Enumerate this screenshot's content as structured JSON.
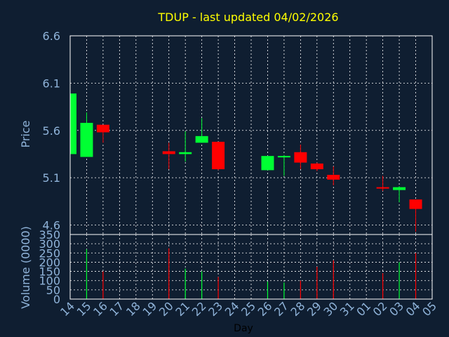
{
  "title": "TDUP - last updated 04/02/2026",
  "colors": {
    "background": "#0f1e31",
    "title": "#ffff00",
    "axis_text": "#8fb3d9",
    "xlabel_text": "#000000",
    "up": "#00ff33",
    "down": "#ff0000",
    "grid": "#ffffff"
  },
  "chart_data": [
    {
      "type": "candlestick",
      "ylabel": "Price",
      "ylim": [
        4.5,
        6.6
      ],
      "yticks": [
        "6.6",
        "6.1",
        "5.6",
        "5.1",
        "4.6"
      ],
      "grid": true,
      "candles": [
        {
          "x": "14",
          "open": 5.35,
          "high": 5.99,
          "low": 5.35,
          "close": 5.99
        },
        {
          "x": "15",
          "open": 5.32,
          "high": 5.79,
          "low": 5.32,
          "close": 5.68
        },
        {
          "x": "16",
          "open": 5.66,
          "high": 5.66,
          "low": 5.47,
          "close": 5.58
        },
        {
          "x": "20",
          "open": 5.38,
          "high": 5.47,
          "low": 5.19,
          "close": 5.35
        },
        {
          "x": "21",
          "open": 5.35,
          "high": 5.59,
          "low": 5.27,
          "close": 5.37
        },
        {
          "x": "22",
          "open": 5.47,
          "high": 5.73,
          "low": 5.47,
          "close": 5.54
        },
        {
          "x": "23",
          "open": 5.48,
          "high": 5.48,
          "low": 5.18,
          "close": 5.19
        },
        {
          "x": "26",
          "open": 5.18,
          "high": 5.33,
          "low": 5.18,
          "close": 5.33
        },
        {
          "x": "27",
          "open": 5.32,
          "high": 5.34,
          "low": 5.12,
          "close": 5.33
        },
        {
          "x": "28",
          "open": 5.37,
          "high": 5.45,
          "low": 5.19,
          "close": 5.26
        },
        {
          "x": "29",
          "open": 5.25,
          "high": 5.26,
          "low": 5.17,
          "close": 5.19
        },
        {
          "x": "30",
          "open": 5.13,
          "high": 5.22,
          "low": 5.02,
          "close": 5.08
        },
        {
          "x": "02",
          "open": 5.0,
          "high": 5.12,
          "low": 4.96,
          "close": 4.99
        },
        {
          "x": "03",
          "open": 4.97,
          "high": 5.01,
          "low": 4.84,
          "close": 5.0
        },
        {
          "x": "04",
          "open": 4.87,
          "high": 4.87,
          "low": 4.53,
          "close": 4.77
        }
      ]
    },
    {
      "type": "bar",
      "ylabel": "Volume (0000)",
      "xlabel": "Day",
      "ylim": [
        0,
        350
      ],
      "yticks": [
        "350",
        "300",
        "250",
        "200",
        "150",
        "100",
        "50",
        "0"
      ],
      "grid": true,
      "categories": [
        "14",
        "15",
        "16",
        "17",
        "18",
        "19",
        "20",
        "21",
        "22",
        "23",
        "24",
        "25",
        "26",
        "27",
        "28",
        "29",
        "30",
        "31",
        "01",
        "02",
        "03",
        "04",
        "05"
      ],
      "bars": [
        {
          "x": "15",
          "value": 270,
          "dir": "up"
        },
        {
          "x": "16",
          "value": 150,
          "dir": "down"
        },
        {
          "x": "20",
          "value": 275,
          "dir": "down"
        },
        {
          "x": "21",
          "value": 165,
          "dir": "up"
        },
        {
          "x": "22",
          "value": 150,
          "dir": "up"
        },
        {
          "x": "23",
          "value": 120,
          "dir": "down"
        },
        {
          "x": "26",
          "value": 95,
          "dir": "up"
        },
        {
          "x": "27",
          "value": 90,
          "dir": "up"
        },
        {
          "x": "28",
          "value": 100,
          "dir": "down"
        },
        {
          "x": "29",
          "value": 175,
          "dir": "down"
        },
        {
          "x": "30",
          "value": 210,
          "dir": "down"
        },
        {
          "x": "02",
          "value": 140,
          "dir": "down"
        },
        {
          "x": "03",
          "value": 200,
          "dir": "up"
        },
        {
          "x": "04",
          "value": 250,
          "dir": "down"
        }
      ]
    }
  ]
}
